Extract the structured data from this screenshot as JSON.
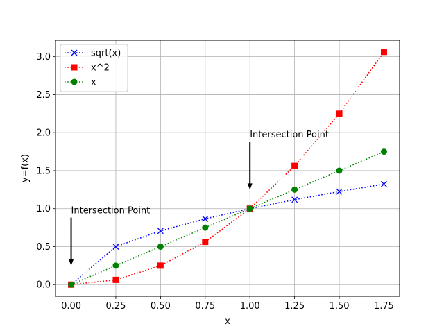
{
  "chart_data": {
    "type": "line",
    "title": "",
    "xlabel": "x",
    "ylabel": "y=f(x)",
    "xlim": [
      -0.0875,
      1.8375
    ],
    "ylim": [
      -0.153,
      3.216
    ],
    "grid": true,
    "legend_position": "top-left",
    "x": [
      0,
      0.25,
      0.5,
      0.75,
      1.0,
      1.25,
      1.5,
      1.75
    ],
    "xticks": [
      0.0,
      0.25,
      0.5,
      0.75,
      1.0,
      1.25,
      1.5,
      1.75
    ],
    "xtick_labels": [
      "0.00",
      "0.25",
      "0.50",
      "0.75",
      "1.00",
      "1.25",
      "1.50",
      "1.75"
    ],
    "yticks": [
      0.0,
      0.5,
      1.0,
      1.5,
      2.0,
      2.5,
      3.0
    ],
    "ytick_labels": [
      "0.0",
      "0.5",
      "1.0",
      "1.5",
      "2.0",
      "2.5",
      "3.0"
    ],
    "series": [
      {
        "name": "sqrt(x)",
        "color": "#0000ff",
        "marker": "x",
        "linestyle": "dotted",
        "values": [
          0.0,
          0.5,
          0.7071,
          0.866,
          1.0,
          1.118,
          1.2247,
          1.3229
        ]
      },
      {
        "name": "x^2",
        "color": "#ff0000",
        "marker": "square",
        "linestyle": "dotted",
        "values": [
          0.0,
          0.0625,
          0.25,
          0.5625,
          1.0,
          1.5625,
          2.25,
          3.0625
        ]
      },
      {
        "name": "x",
        "color": "#008000",
        "marker": "circle",
        "linestyle": "dotted",
        "values": [
          0.0,
          0.25,
          0.5,
          0.75,
          1.0,
          1.25,
          1.5,
          1.75
        ]
      }
    ],
    "annotations": [
      {
        "text": "Intersection Point",
        "xy": [
          0,
          0.25
        ],
        "xytext": [
          0,
          0.9
        ]
      },
      {
        "text": "Intersection Point",
        "xy": [
          1,
          1.25
        ],
        "xytext": [
          1,
          1.9
        ]
      }
    ]
  }
}
